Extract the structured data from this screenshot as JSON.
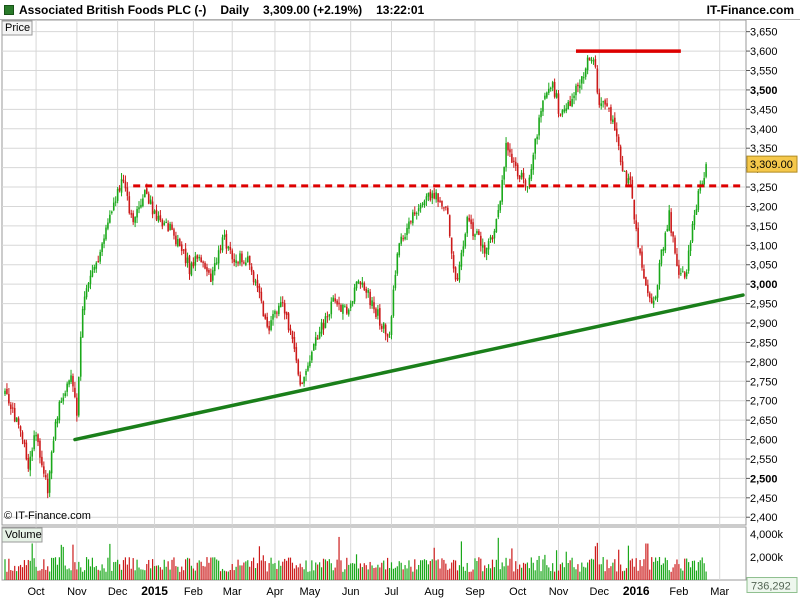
{
  "header": {
    "instrument": "Associated British Foods PLC (-)",
    "interval": "Daily",
    "quote": "3,309.00 (+2.19%)",
    "time": "13:22:01",
    "brand": "IT-Finance.com"
  },
  "panels": {
    "price_label": "Price",
    "volume_label": "Volume",
    "watermark": "© IT-Finance.com",
    "last_price_label": "3,309.00",
    "last_volume_label": "736,292"
  },
  "colors": {
    "up": "#1aa81a",
    "down": "#cc1a1a",
    "trendline": "#1a7f1a",
    "resistance": "#dd0000",
    "last_price_bg": "#f5c84b",
    "grid": "#d7d7d7",
    "volume_label_bg": "#e6f2e6"
  },
  "chart_data": {
    "type": "candlestick",
    "title": "Associated British Foods PLC (-)",
    "ylim": [
      2380,
      3680
    ],
    "y_ticks": [
      {
        "v": 2400,
        "l": "2,400"
      },
      {
        "v": 2450,
        "l": "2,450"
      },
      {
        "v": 2500,
        "l": "2,500",
        "bold": true
      },
      {
        "v": 2550,
        "l": "2,550"
      },
      {
        "v": 2600,
        "l": "2,600"
      },
      {
        "v": 2650,
        "l": "2,650"
      },
      {
        "v": 2700,
        "l": "2,700"
      },
      {
        "v": 2750,
        "l": "2,750"
      },
      {
        "v": 2800,
        "l": "2,800"
      },
      {
        "v": 2850,
        "l": "2,850"
      },
      {
        "v": 2900,
        "l": "2,900"
      },
      {
        "v": 2950,
        "l": "2,950"
      },
      {
        "v": 3000,
        "l": "3,000",
        "bold": true
      },
      {
        "v": 3050,
        "l": "3,050"
      },
      {
        "v": 3100,
        "l": "3,100"
      },
      {
        "v": 3150,
        "l": "3,150"
      },
      {
        "v": 3200,
        "l": "3,200"
      },
      {
        "v": 3250,
        "l": "3,250"
      },
      {
        "v": 3300,
        "l": "3,300"
      },
      {
        "v": 3350,
        "l": "3,350"
      },
      {
        "v": 3400,
        "l": "3,400"
      },
      {
        "v": 3450,
        "l": "3,450"
      },
      {
        "v": 3500,
        "l": "3,500",
        "bold": true
      },
      {
        "v": 3550,
        "l": "3,550"
      },
      {
        "v": 3600,
        "l": "3,600"
      },
      {
        "v": 3650,
        "l": "3,650"
      }
    ],
    "x_range": [
      0,
      380
    ],
    "x_ticks": [
      {
        "i": 16,
        "l": "Oct"
      },
      {
        "i": 37,
        "l": "Nov"
      },
      {
        "i": 58,
        "l": "Dec"
      },
      {
        "i": 77,
        "l": "2015",
        "bold": true
      },
      {
        "i": 97,
        "l": "Feb"
      },
      {
        "i": 117,
        "l": "Mar"
      },
      {
        "i": 139,
        "l": "Apr"
      },
      {
        "i": 157,
        "l": "May"
      },
      {
        "i": 178,
        "l": "Jun"
      },
      {
        "i": 199,
        "l": "Jul"
      },
      {
        "i": 221,
        "l": "Aug"
      },
      {
        "i": 242,
        "l": "Sep"
      },
      {
        "i": 264,
        "l": "Oct"
      },
      {
        "i": 285,
        "l": "Nov"
      },
      {
        "i": 306,
        "l": "Dec"
      },
      {
        "i": 325,
        "l": "2016",
        "bold": true
      },
      {
        "i": 347,
        "l": "Feb"
      },
      {
        "i": 368,
        "l": "Mar"
      }
    ],
    "anchors": [
      [
        0,
        2720
      ],
      [
        6,
        2650
      ],
      [
        12,
        2540
      ],
      [
        16,
        2620
      ],
      [
        22,
        2460
      ],
      [
        26,
        2650
      ],
      [
        34,
        2780
      ],
      [
        37,
        2660
      ],
      [
        40,
        2950
      ],
      [
        48,
        3060
      ],
      [
        56,
        3200
      ],
      [
        60,
        3270
      ],
      [
        66,
        3160
      ],
      [
        72,
        3250
      ],
      [
        77,
        3180
      ],
      [
        84,
        3150
      ],
      [
        90,
        3100
      ],
      [
        95,
        3040
      ],
      [
        100,
        3080
      ],
      [
        106,
        3020
      ],
      [
        112,
        3120
      ],
      [
        118,
        3060
      ],
      [
        124,
        3070
      ],
      [
        130,
        2980
      ],
      [
        136,
        2880
      ],
      [
        142,
        2960
      ],
      [
        148,
        2850
      ],
      [
        152,
        2740
      ],
      [
        158,
        2820
      ],
      [
        164,
        2900
      ],
      [
        170,
        2960
      ],
      [
        176,
        2920
      ],
      [
        182,
        3020
      ],
      [
        188,
        2960
      ],
      [
        194,
        2900
      ],
      [
        198,
        2870
      ],
      [
        202,
        3080
      ],
      [
        208,
        3160
      ],
      [
        214,
        3220
      ],
      [
        222,
        3220
      ],
      [
        228,
        3180
      ],
      [
        232,
        3000
      ],
      [
        238,
        3160
      ],
      [
        244,
        3120
      ],
      [
        248,
        3080
      ],
      [
        254,
        3180
      ],
      [
        258,
        3360
      ],
      [
        264,
        3280
      ],
      [
        270,
        3260
      ],
      [
        276,
        3460
      ],
      [
        282,
        3520
      ],
      [
        286,
        3430
      ],
      [
        292,
        3480
      ],
      [
        296,
        3520
      ],
      [
        300,
        3570
      ],
      [
        303,
        3590
      ],
      [
        306,
        3460
      ],
      [
        310,
        3450
      ],
      [
        314,
        3400
      ],
      [
        318,
        3280
      ],
      [
        322,
        3260
      ],
      [
        326,
        3100
      ],
      [
        330,
        2980
      ],
      [
        334,
        2950
      ],
      [
        338,
        3080
      ],
      [
        342,
        3180
      ],
      [
        346,
        3040
      ],
      [
        350,
        3010
      ],
      [
        354,
        3160
      ],
      [
        358,
        3250
      ],
      [
        361,
        3309
      ]
    ],
    "volume_ylim": [
      0,
      4600
    ],
    "volume_ticks": [
      {
        "v": 4000,
        "l": "4,000k"
      },
      {
        "v": 2000,
        "l": "2,000k"
      }
    ],
    "last_price": 3309,
    "last_volume": 736292,
    "annotations": [
      {
        "type": "trendline",
        "color": "green",
        "from": {
          "i": 36,
          "v": 2600
        },
        "to": {
          "i": 380,
          "v": 2972
        }
      },
      {
        "type": "horizontal-dashed",
        "color": "red",
        "value": 3253,
        "from_i": 66,
        "to_i": 380
      },
      {
        "type": "horizontal-solid",
        "color": "red",
        "value": 3600,
        "from_i": 294,
        "to_i": 348
      }
    ]
  }
}
